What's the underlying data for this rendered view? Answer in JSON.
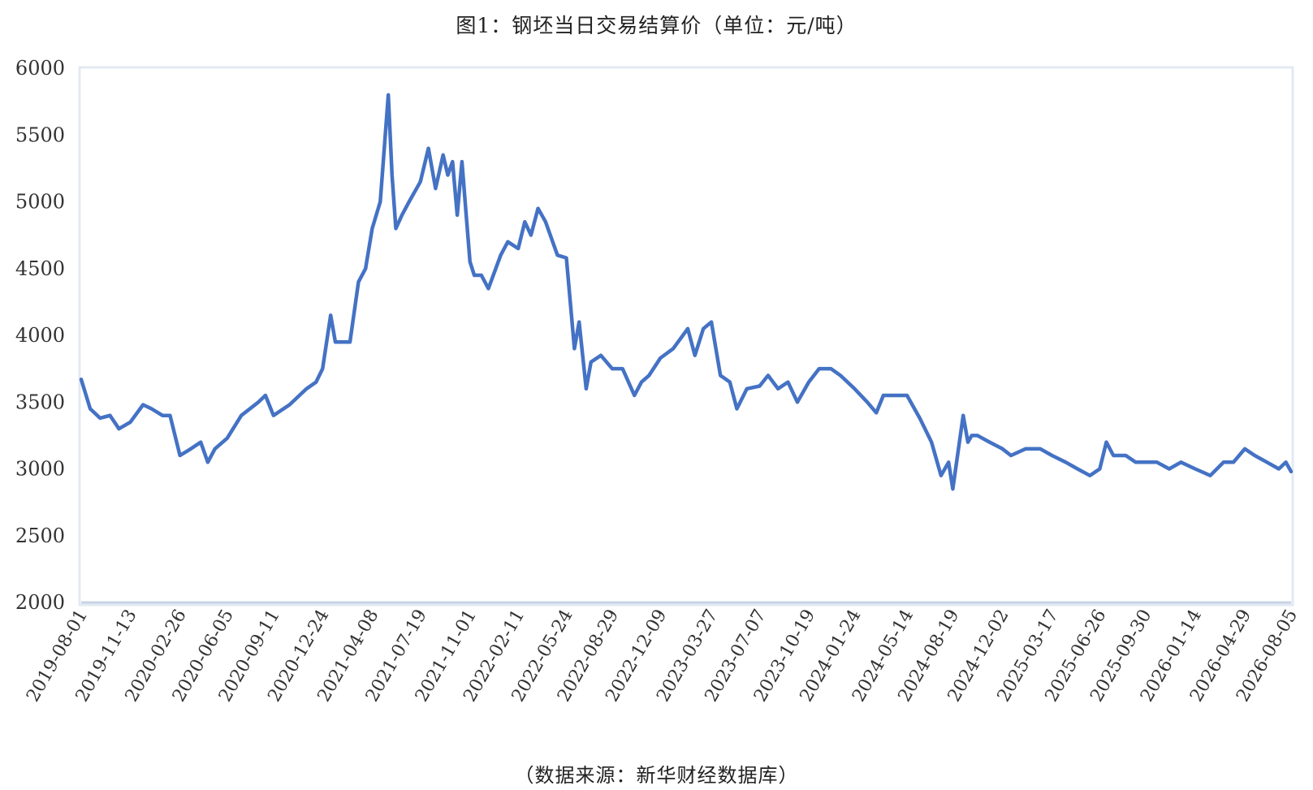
{
  "chart_data": {
    "type": "line",
    "title": "图1：钢坯当日交易结算价（单位：元/吨）",
    "source": "（数据来源：新华财经数据库）",
    "xlabel": "",
    "ylabel": "",
    "ylim": [
      2000,
      6000
    ],
    "yticks": [
      "6000",
      "5500",
      "5000",
      "4500",
      "4000",
      "3500",
      "3000",
      "2500",
      "2000"
    ],
    "xticks": [
      "2019-08-01",
      "2019-11-13",
      "2020-02-26",
      "2020-06-05",
      "2020-09-11",
      "2020-12-24",
      "2021-04-08",
      "2021-07-19",
      "2021-11-01",
      "2022-02-11",
      "2022-05-24",
      "2022-08-29",
      "2022-12-09",
      "2023-03-27",
      "2023-07-07",
      "2023-10-19",
      "2024-01-24",
      "2024-05-14",
      "2024-08-19",
      "2024-12-02",
      "2025-03-17",
      "2025-06-26",
      "2025-09-30",
      "2026-01-14",
      "2026-04-29",
      "2026-08-05"
    ],
    "grid": false,
    "legend": "none",
    "color": "#4472C4",
    "series": [
      {
        "x": [
          "2019-08-01",
          "2019-08-20",
          "2019-09-10",
          "2019-10-01",
          "2019-10-20",
          "2019-11-13",
          "2019-12-10",
          "2019-12-28",
          "2020-01-20",
          "2020-02-05",
          "2020-02-26",
          "2020-03-20",
          "2020-04-10",
          "2020-04-25",
          "2020-05-10",
          "2020-06-05",
          "2020-07-05",
          "2020-08-10",
          "2020-08-25",
          "2020-09-11",
          "2020-10-15",
          "2020-11-20",
          "2020-12-10",
          "2020-12-24",
          "2021-01-10",
          "2021-01-20",
          "2021-02-20",
          "2021-03-10",
          "2021-03-25",
          "2021-04-08",
          "2021-04-25",
          "2021-05-12",
          "2021-05-20",
          "2021-05-28",
          "2021-06-10",
          "2021-06-25",
          "2021-07-19",
          "2021-08-05",
          "2021-08-20",
          "2021-09-05",
          "2021-09-15",
          "2021-09-25",
          "2021-10-05",
          "2021-10-15",
          "2021-10-25",
          "2021-11-01",
          "2021-11-10",
          "2021-11-25",
          "2021-12-10",
          "2022-01-05",
          "2022-01-20",
          "2022-02-11",
          "2022-02-25",
          "2022-03-10",
          "2022-03-25",
          "2022-04-10",
          "2022-05-05",
          "2022-05-24",
          "2022-06-10",
          "2022-06-20",
          "2022-07-05",
          "2022-07-15",
          "2022-08-05",
          "2022-08-29",
          "2022-09-20",
          "2022-10-15",
          "2022-10-30",
          "2022-11-15",
          "2022-12-09",
          "2023-01-05",
          "2023-02-05",
          "2023-02-20",
          "2023-03-10",
          "2023-03-27",
          "2023-04-15",
          "2023-05-05",
          "2023-05-20",
          "2023-06-10",
          "2023-07-07",
          "2023-07-25",
          "2023-08-15",
          "2023-09-05",
          "2023-09-25",
          "2023-10-19",
          "2023-11-10",
          "2023-12-05",
          "2023-12-25",
          "2024-01-24",
          "2024-02-20",
          "2024-03-10",
          "2024-03-25",
          "2024-04-10",
          "2024-05-14",
          "2024-06-10",
          "2024-07-05",
          "2024-07-25",
          "2024-08-10",
          "2024-08-19",
          "2024-09-10",
          "2024-09-20",
          "2024-09-28",
          "2024-10-10",
          "2024-11-05",
          "2024-12-02",
          "2024-12-20",
          "2025-01-20",
          "2025-02-20",
          "2025-03-17",
          "2025-04-15",
          "2025-05-10",
          "2025-06-05",
          "2025-06-26",
          "2025-07-10",
          "2025-07-25",
          "2025-08-20",
          "2025-09-10",
          "2025-09-30",
          "2025-10-25",
          "2025-11-20",
          "2025-12-15",
          "2026-01-14",
          "2026-02-15",
          "2026-03-15",
          "2026-04-05",
          "2026-04-29",
          "2026-05-20",
          "2026-06-15",
          "2026-07-10",
          "2026-07-25",
          "2026-08-05"
        ],
        "values": [
          3670,
          3450,
          3380,
          3400,
          3300,
          3350,
          3480,
          3450,
          3400,
          3400,
          3100,
          3150,
          3200,
          3050,
          3150,
          3230,
          3400,
          3500,
          3550,
          3400,
          3480,
          3600,
          3650,
          3750,
          4150,
          3950,
          3950,
          4400,
          4500,
          4800,
          5000,
          5800,
          5200,
          4800,
          4900,
          5000,
          5150,
          5400,
          5100,
          5350,
          5200,
          5300,
          4900,
          5300,
          4850,
          4550,
          4450,
          4450,
          4350,
          4600,
          4700,
          4650,
          4850,
          4750,
          4950,
          4850,
          4600,
          4580,
          3900,
          4100,
          3600,
          3800,
          3850,
          3750,
          3750,
          3550,
          3650,
          3700,
          3830,
          3900,
          4050,
          3850,
          4050,
          4100,
          3700,
          3650,
          3450,
          3600,
          3620,
          3700,
          3600,
          3650,
          3500,
          3650,
          3750,
          3750,
          3700,
          3600,
          3500,
          3420,
          3550,
          3550,
          3550,
          3380,
          3200,
          2950,
          3050,
          2850,
          3400,
          3200,
          3250,
          3250,
          3200,
          3150,
          3100,
          3150,
          3150,
          3100,
          3050,
          3000,
          2950,
          3000,
          3200,
          3100,
          3100,
          3050,
          3050,
          3050,
          3000,
          3050,
          3000,
          2950,
          3050,
          3050,
          3150,
          3100,
          3050,
          3000,
          3050,
          2980
        ]
      }
    ]
  }
}
